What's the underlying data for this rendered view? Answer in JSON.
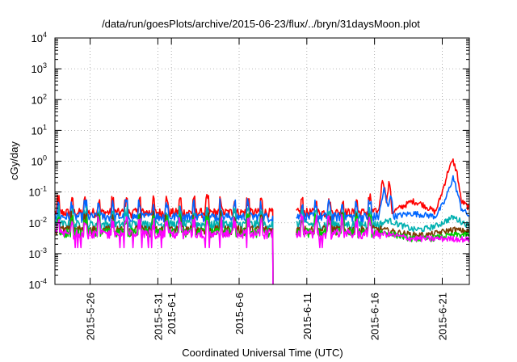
{
  "chart_data": {
    "type": "line",
    "title": "/data/run/goesPlots/archive/2015-06-23/flux/../bryn/31daysMoon.plot",
    "xlabel": "Coordinated Universal Time (UTC)",
    "ylabel": "cGy/day",
    "yscale": "log",
    "ylim": [
      0.0001,
      10000
    ],
    "xlim_days": [
      23.4,
      54.0
    ],
    "grid": true,
    "legend": "none",
    "x_ticks": [
      {
        "label": "2015-5-26",
        "day": 26
      },
      {
        "label": "2015-5-31",
        "day": 31
      },
      {
        "label": "2015-6-1",
        "day": 32
      },
      {
        "label": "2015-6-6",
        "day": 37
      },
      {
        "label": "2015-6-11",
        "day": 42
      },
      {
        "label": "2015-6-16",
        "day": 47
      },
      {
        "label": "2015-6-21",
        "day": 52
      }
    ],
    "y_ticks": [
      {
        "base": "10",
        "exp": "-4",
        "value": 0.0001
      },
      {
        "base": "10",
        "exp": "-3",
        "value": 0.001
      },
      {
        "base": "10",
        "exp": "-2",
        "value": 0.01
      },
      {
        "base": "10",
        "exp": "-1",
        "value": 0.1
      },
      {
        "base": "10",
        "exp": "0",
        "value": 1
      },
      {
        "base": "10",
        "exp": "1",
        "value": 10
      },
      {
        "base": "10",
        "exp": "2",
        "value": 100
      },
      {
        "base": "10",
        "exp": "3",
        "value": 1000
      },
      {
        "base": "10",
        "exp": "4",
        "value": 10000
      }
    ],
    "gap": [
      39.5,
      41.2
    ],
    "series": [
      {
        "color": "#ff0000",
        "base": 0.022,
        "points": [
          [
            47.3,
            0.022
          ],
          [
            47.6,
            0.3
          ],
          [
            47.9,
            0.05
          ],
          [
            48.1,
            0.25
          ],
          [
            48.3,
            0.022
          ],
          [
            49.8,
            0.05
          ],
          [
            50.5,
            0.04
          ],
          [
            51.5,
            0.022
          ],
          [
            52.0,
            0.1
          ],
          [
            52.5,
            0.6
          ],
          [
            52.8,
            1.0
          ],
          [
            53.1,
            0.4
          ],
          [
            53.4,
            0.05
          ],
          [
            54.0,
            0.03
          ]
        ]
      },
      {
        "color": "#0066ff",
        "base": 0.016,
        "points": [
          [
            47.3,
            0.016
          ],
          [
            47.7,
            0.12
          ],
          [
            48.0,
            0.03
          ],
          [
            48.2,
            0.1
          ],
          [
            48.4,
            0.016
          ],
          [
            49.8,
            0.02
          ],
          [
            51.5,
            0.016
          ],
          [
            52.2,
            0.05
          ],
          [
            52.8,
            0.3
          ],
          [
            53.1,
            0.1
          ],
          [
            53.4,
            0.03
          ],
          [
            54.0,
            0.016
          ]
        ]
      },
      {
        "color": "#00b0b0",
        "base": 0.009,
        "points": [
          [
            47.5,
            0.009
          ],
          [
            48.0,
            0.012
          ],
          [
            49.8,
            0.006
          ],
          [
            50.5,
            0.006
          ],
          [
            51.6,
            0.008
          ],
          [
            52.8,
            0.015
          ],
          [
            54.0,
            0.008
          ]
        ]
      },
      {
        "color": "#7a3a00",
        "base": 0.006,
        "points": [
          [
            47.5,
            0.006
          ],
          [
            49.8,
            0.004
          ],
          [
            51.0,
            0.004
          ],
          [
            52.8,
            0.006
          ],
          [
            54.0,
            0.005
          ]
        ]
      },
      {
        "color": "#00cc00",
        "base": 0.005,
        "points": [
          [
            47.5,
            0.005
          ],
          [
            49.8,
            0.003
          ],
          [
            51.0,
            0.003
          ],
          [
            53.0,
            0.004
          ],
          [
            54.0,
            0.004
          ]
        ]
      },
      {
        "color": "#ff00ff",
        "base": 0.0045,
        "points": [
          [
            47.5,
            0.0045
          ],
          [
            49.8,
            0.003
          ],
          [
            51.5,
            0.003
          ],
          [
            53.0,
            0.003
          ],
          [
            54.0,
            0.0028
          ]
        ]
      }
    ]
  }
}
